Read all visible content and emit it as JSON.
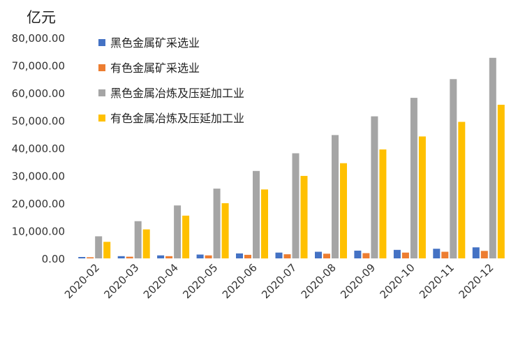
{
  "chart_data": {
    "type": "bar",
    "unit_label": "亿元",
    "categories": [
      "2020-02",
      "2020-03",
      "2020-04",
      "2020-05",
      "2020-06",
      "2020-07",
      "2020-08",
      "2020-09",
      "2020-10",
      "2020-11",
      "2020-12"
    ],
    "series": [
      {
        "name": "黑色金属矿采选业",
        "color": "#4472C4",
        "values": [
          500,
          800,
          1100,
          1400,
          1800,
          2100,
          2400,
          2800,
          3100,
          3500,
          4000
        ]
      },
      {
        "name": "有色金属矿采选业",
        "color": "#ED7D31",
        "values": [
          400,
          600,
          800,
          1100,
          1300,
          1500,
          1700,
          1900,
          2100,
          2400,
          2700
        ]
      },
      {
        "name": "黑色金属冶炼及压延加工业",
        "color": "#A5A5A5",
        "values": [
          8000,
          13500,
          19200,
          25300,
          31700,
          38100,
          44700,
          51500,
          58200,
          65000,
          72700
        ]
      },
      {
        "name": "有色金属冶炼及压延加工业",
        "color": "#FFC000",
        "values": [
          6000,
          10500,
          15500,
          20000,
          25000,
          29900,
          34500,
          39500,
          44200,
          49500,
          55700
        ]
      }
    ],
    "ylim": [
      0,
      80000
    ],
    "yticks": [
      0,
      10000,
      20000,
      30000,
      40000,
      50000,
      60000,
      70000,
      80000
    ],
    "ytick_labels": [
      "0.00",
      "10,000.00",
      "20,000.00",
      "30,000.00",
      "40,000.00",
      "50,000.00",
      "60,000.00",
      "70,000.00",
      "80,000.00"
    ],
    "legend_position": "top-left",
    "grid": false
  }
}
